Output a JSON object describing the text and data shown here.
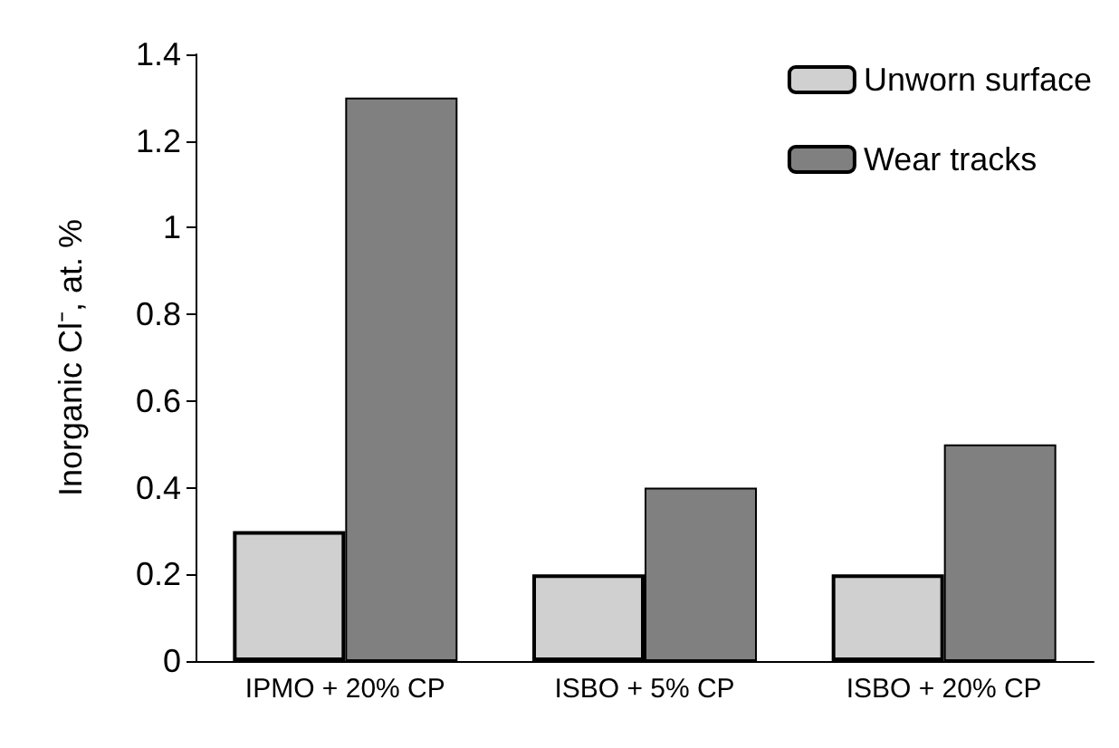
{
  "chart_data": {
    "type": "bar",
    "ylabel": "Inorganic Cl⁻, at. %",
    "categories": [
      "IPMO + 20% CP",
      "ISBO + 5% CP",
      "ISBO + 20% CP"
    ],
    "series": [
      {
        "name": "Unworn surface",
        "color": "#d0d0d0",
        "values": [
          0.3,
          0.2,
          0.2
        ]
      },
      {
        "name": "Wear tracks",
        "color": "#808080",
        "values": [
          1.3,
          0.4,
          0.5
        ]
      }
    ],
    "ylim": [
      0,
      1.4
    ],
    "yticks": [
      0,
      0.2,
      0.4,
      0.6,
      0.8,
      1,
      1.2,
      1.4
    ],
    "grid": false,
    "legend": "top right"
  }
}
